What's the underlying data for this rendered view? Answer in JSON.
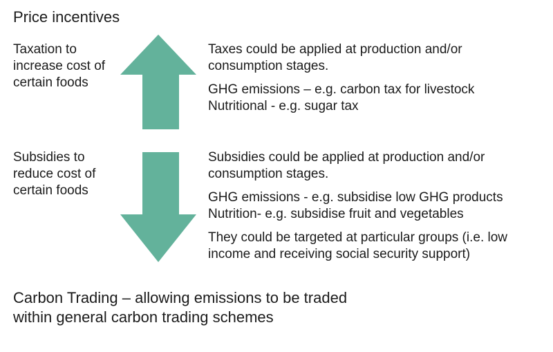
{
  "heading": "Price incentives",
  "taxation": {
    "label": "Taxation to increase cost of certain foods",
    "desc_1": "Taxes could be applied at production and/or consumption stages.",
    "desc_2_line1": "GHG emissions – e.g. carbon tax for livestock",
    "desc_2_line2": "Nutritional - e.g. sugar tax"
  },
  "subsidies": {
    "label": "Subsidies to reduce cost of certain foods",
    "desc_1": "Subsidies could be applied at production and/or consumption stages.",
    "desc_2_line1": "GHG emissions - e.g. subsidise low GHG products",
    "desc_2_line2": "Nutrition- e.g. subsidise fruit and vegetables",
    "desc_3": "They could be targeted at particular groups (i.e. low income and receiving social security support)"
  },
  "footer": {
    "title": "Carbon Trading",
    "text": " – allowing emissions to be traded within general carbon trading schemes"
  },
  "colors": {
    "arrow": "#63b29b",
    "text": "#1a1a1a"
  },
  "icons": {
    "up": "up-arrow-icon",
    "down": "down-arrow-icon"
  }
}
